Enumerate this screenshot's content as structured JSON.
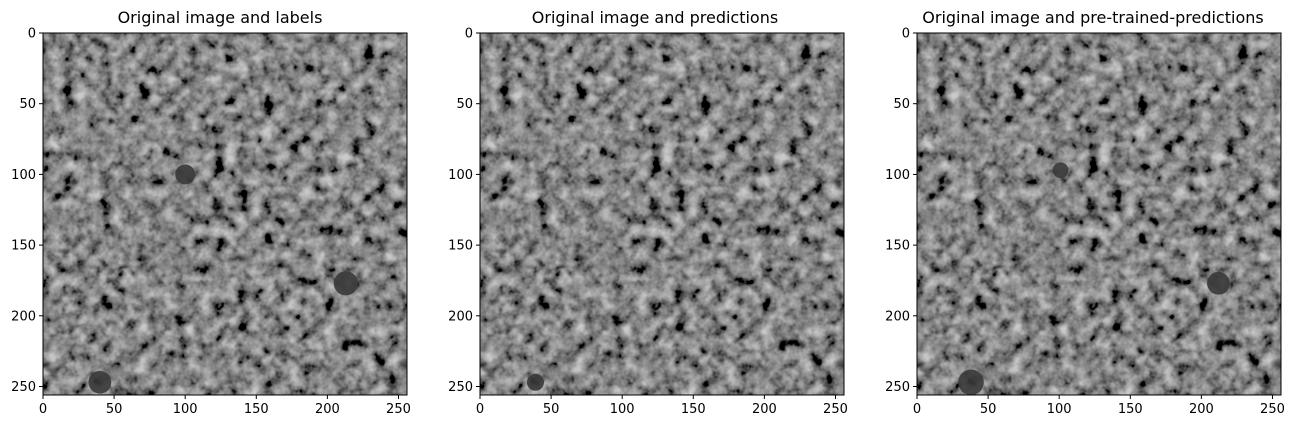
{
  "chart_data": [
    {
      "type": "image",
      "title": "Original image and labels",
      "xlim": [
        0,
        256
      ],
      "ylim": [
        256,
        0
      ],
      "xticks": [
        0,
        50,
        100,
        150,
        200,
        250
      ],
      "yticks": [
        0,
        50,
        100,
        150,
        200,
        250
      ],
      "grid": false,
      "marks": [
        {
          "x": 100,
          "y": 100,
          "r": 7
        },
        {
          "x": 213,
          "y": 177,
          "r": 8.5
        },
        {
          "x": 40,
          "y": 247,
          "r": 8
        }
      ]
    },
    {
      "type": "image",
      "title": "Original image and predictions",
      "xlim": [
        0,
        256
      ],
      "ylim": [
        256,
        0
      ],
      "xticks": [
        0,
        50,
        100,
        150,
        200,
        250
      ],
      "yticks": [
        0,
        50,
        100,
        150,
        200,
        250
      ],
      "grid": false,
      "marks": [
        {
          "x": 39,
          "y": 247,
          "r": 6
        }
      ]
    },
    {
      "type": "image",
      "title": "Original image and pre-trained-predictions",
      "xlim": [
        0,
        256
      ],
      "ylim": [
        256,
        0
      ],
      "xticks": [
        0,
        50,
        100,
        150,
        200,
        250
      ],
      "yticks": [
        0,
        50,
        100,
        150,
        200,
        250
      ],
      "grid": false,
      "marks": [
        {
          "x": 101,
          "y": 97,
          "r": 5.5
        },
        {
          "x": 212,
          "y": 177,
          "r": 8
        },
        {
          "x": 38,
          "y": 247,
          "r": 9
        }
      ]
    }
  ],
  "colors": {
    "background_gray": "#c9c9c9",
    "mark_fill": "#3a3a3a"
  }
}
